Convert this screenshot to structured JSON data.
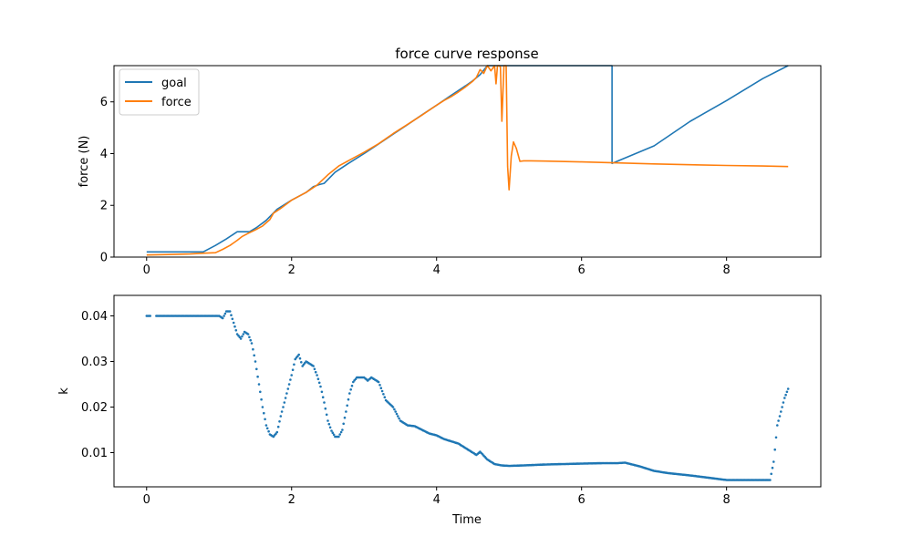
{
  "chart_data": [
    {
      "type": "line",
      "title": "force curve response",
      "xlabel": "",
      "ylabel": "force (N)",
      "xlim": [
        -0.45,
        9.3
      ],
      "ylim": [
        0,
        7.4
      ],
      "xticks": [
        0,
        2,
        4,
        6,
        8
      ],
      "yticks": [
        0,
        2,
        4,
        6
      ],
      "grid": false,
      "legend": "top-left",
      "series": [
        {
          "name": "goal",
          "color": "#1f77b4",
          "x": [
            0,
            0.78,
            0.95,
            1.1,
            1.25,
            1.32,
            1.42,
            1.52,
            1.65,
            1.8,
            2.0,
            2.2,
            2.3,
            2.38,
            2.45,
            2.6,
            2.8,
            3.0,
            3.2,
            3.4,
            3.6,
            3.8,
            4.0,
            4.2,
            4.4,
            4.5,
            4.6,
            4.7,
            6.42,
            6.42,
            7.0,
            7.5,
            8.0,
            8.5,
            8.85
          ],
          "y": [
            0.2,
            0.2,
            0.45,
            0.7,
            0.98,
            0.98,
            0.98,
            1.15,
            1.42,
            1.85,
            2.2,
            2.5,
            2.72,
            2.8,
            2.85,
            3.28,
            3.65,
            4.0,
            4.37,
            4.75,
            5.12,
            5.5,
            5.87,
            6.25,
            6.62,
            6.82,
            7.05,
            7.4,
            7.4,
            3.62,
            4.3,
            5.25,
            6.05,
            6.9,
            7.4
          ]
        },
        {
          "name": "force",
          "color": "#ff7f0e",
          "x": [
            0,
            0.3,
            0.6,
            0.8,
            0.95,
            1.05,
            1.15,
            1.25,
            1.32,
            1.4,
            1.5,
            1.6,
            1.7,
            1.75,
            1.85,
            2.0,
            2.2,
            2.35,
            2.5,
            2.65,
            2.8,
            3.0,
            3.2,
            3.4,
            3.6,
            3.8,
            4.0,
            4.1,
            4.2,
            4.3,
            4.4,
            4.5,
            4.55,
            4.6,
            4.65,
            4.7,
            4.75,
            4.8,
            4.82,
            4.84,
            4.86,
            4.88,
            4.9,
            4.93,
            4.96,
            4.98,
            5.0,
            5.03,
            5.06,
            5.1,
            5.15,
            5.2,
            5.3,
            5.5,
            6.0,
            6.5,
            7.0,
            7.5,
            8.0,
            8.5,
            8.85
          ],
          "y": [
            0.08,
            0.1,
            0.12,
            0.15,
            0.17,
            0.3,
            0.45,
            0.65,
            0.8,
            0.92,
            1.05,
            1.2,
            1.45,
            1.7,
            1.88,
            2.2,
            2.5,
            2.78,
            3.18,
            3.52,
            3.75,
            4.05,
            4.38,
            4.77,
            5.13,
            5.49,
            5.87,
            6.05,
            6.2,
            6.38,
            6.58,
            6.8,
            6.95,
            7.25,
            7.1,
            7.4,
            7.2,
            7.4,
            6.7,
            7.4,
            7.4,
            7.35,
            5.25,
            7.4,
            7.4,
            3.5,
            2.6,
            3.9,
            4.45,
            4.2,
            3.7,
            3.72,
            3.72,
            3.71,
            3.68,
            3.64,
            3.6,
            3.57,
            3.54,
            3.52,
            3.5
          ]
        }
      ]
    },
    {
      "type": "scatter",
      "title": "",
      "xlabel": "Time",
      "ylabel": "k",
      "xlim": [
        -0.45,
        9.3
      ],
      "ylim": [
        0.0025,
        0.0445
      ],
      "xticks": [
        0,
        2,
        4,
        6,
        8
      ],
      "yticks": [
        0.01,
        0.02,
        0.03,
        0.04
      ],
      "grid": false,
      "legend": "none",
      "series": [
        {
          "name": "",
          "color": "#1f77b4",
          "x": [
            0,
            0.15,
            0.3,
            0.5,
            0.7,
            0.9,
            1.0,
            1.05,
            1.1,
            1.15,
            1.2,
            1.25,
            1.3,
            1.35,
            1.4,
            1.45,
            1.5,
            1.55,
            1.6,
            1.65,
            1.7,
            1.75,
            1.8,
            1.85,
            1.9,
            1.95,
            2.0,
            2.05,
            2.1,
            2.15,
            2.2,
            2.25,
            2.3,
            2.35,
            2.4,
            2.45,
            2.5,
            2.55,
            2.6,
            2.65,
            2.7,
            2.75,
            2.8,
            2.85,
            2.9,
            2.95,
            3.0,
            3.05,
            3.1,
            3.15,
            3.2,
            3.3,
            3.4,
            3.5,
            3.6,
            3.7,
            3.8,
            3.9,
            4.0,
            4.1,
            4.2,
            4.3,
            4.4,
            4.5,
            4.55,
            4.6,
            4.7,
            4.8,
            4.9,
            5.0,
            5.2,
            5.5,
            6.0,
            6.3,
            6.5,
            6.6,
            6.8,
            7.0,
            7.2,
            7.5,
            8.0,
            8.3,
            8.55,
            8.6,
            8.65,
            8.7,
            8.75,
            8.8,
            8.85
          ],
          "y": [
            0.04,
            0.04,
            0.04,
            0.04,
            0.04,
            0.04,
            0.04,
            0.0395,
            0.041,
            0.041,
            0.0385,
            0.036,
            0.035,
            0.0365,
            0.036,
            0.034,
            0.03,
            0.025,
            0.02,
            0.016,
            0.014,
            0.0135,
            0.0145,
            0.018,
            0.021,
            0.024,
            0.027,
            0.0305,
            0.0315,
            0.029,
            0.03,
            0.0295,
            0.029,
            0.027,
            0.0245,
            0.021,
            0.017,
            0.0148,
            0.0135,
            0.0135,
            0.015,
            0.019,
            0.023,
            0.0255,
            0.0265,
            0.0265,
            0.0265,
            0.0258,
            0.0265,
            0.026,
            0.0255,
            0.0215,
            0.02,
            0.017,
            0.016,
            0.0158,
            0.015,
            0.0142,
            0.0138,
            0.013,
            0.0125,
            0.012,
            0.011,
            0.01,
            0.0095,
            0.0102,
            0.0085,
            0.0075,
            0.0072,
            0.0071,
            0.0072,
            0.0074,
            0.0076,
            0.0077,
            0.0077,
            0.0078,
            0.007,
            0.006,
            0.0055,
            0.005,
            0.004,
            0.004,
            0.004,
            0.004,
            0.008,
            0.016,
            0.019,
            0.022,
            0.024
          ]
        }
      ]
    }
  ]
}
